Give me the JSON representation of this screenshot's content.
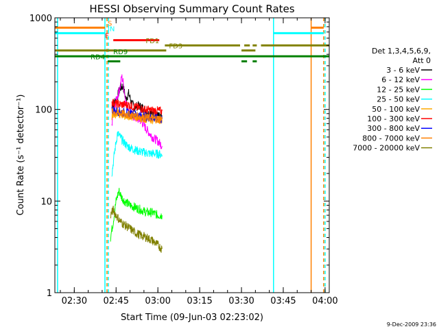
{
  "chart_data": {
    "type": "line",
    "title": "HESSI Observing Summary Count Rates",
    "xlabel": "Start Time (09-Jun-03 02:23:02)",
    "ylabel": "Count Rate (s⁻¹ detector⁻¹)",
    "y_scale": "log",
    "ylim": [
      1,
      1000
    ],
    "xlim": [
      "02:23:02",
      "04:01:30"
    ],
    "x_ticks": [
      "02:30",
      "02:45",
      "03:00",
      "03:15",
      "03:30",
      "03:45",
      "04:00"
    ],
    "y_ticks": [
      "1",
      "10",
      "100",
      "1000"
    ],
    "legend": {
      "header": [
        "Det 1,3,4,5,6,9,",
        "Att 0"
      ],
      "placement": "right"
    },
    "series": [
      {
        "name": "3 - 6 keV",
        "color": "#000000",
        "points": [
          [
            "02:43:30",
            110
          ],
          [
            "02:44:30",
            120
          ],
          [
            "02:45:30",
            140
          ],
          [
            "02:46:30",
            170
          ],
          [
            "02:47:30",
            180
          ],
          [
            "02:48:30",
            130
          ],
          [
            "02:49:30",
            150
          ],
          [
            "02:50:30",
            120
          ],
          [
            "02:51:30",
            105
          ],
          [
            "02:53:00",
            110
          ],
          [
            "02:54:30",
            105
          ],
          [
            "02:56:00",
            95
          ],
          [
            "02:58:00",
            90
          ],
          [
            "03:00:00",
            85
          ],
          [
            "03:01:30",
            80
          ]
        ]
      },
      {
        "name": "6 - 12 keV",
        "color": "#ff00ff",
        "points": [
          [
            "02:43:30",
            70
          ],
          [
            "02:44:30",
            110
          ],
          [
            "02:45:30",
            140
          ],
          [
            "02:46:30",
            180
          ],
          [
            "02:47:00",
            230
          ],
          [
            "02:47:30",
            200
          ],
          [
            "02:48:30",
            120
          ],
          [
            "02:50:00",
            90
          ],
          [
            "02:52:00",
            80
          ],
          [
            "02:54:00",
            75
          ],
          [
            "02:56:00",
            60
          ],
          [
            "02:58:00",
            50
          ],
          [
            "03:00:00",
            45
          ],
          [
            "03:01:30",
            40
          ]
        ]
      },
      {
        "name": "12 - 25 keV",
        "color": "#00ff00",
        "points": [
          [
            "02:43:00",
            4
          ],
          [
            "02:44:00",
            6
          ],
          [
            "02:45:00",
            10
          ],
          [
            "02:46:00",
            13
          ],
          [
            "02:47:00",
            11
          ],
          [
            "02:48:00",
            10
          ],
          [
            "02:50:00",
            9
          ],
          [
            "02:52:00",
            8.5
          ],
          [
            "02:54:00",
            8
          ],
          [
            "02:56:00",
            7.5
          ],
          [
            "02:58:00",
            7.5
          ],
          [
            "03:00:00",
            7
          ],
          [
            "03:01:30",
            7
          ]
        ]
      },
      {
        "name": "25 - 50 keV",
        "color": "#00ffff",
        "points": [
          [
            "02:43:30",
            20
          ],
          [
            "02:44:30",
            35
          ],
          [
            "02:45:30",
            55
          ],
          [
            "02:46:30",
            50
          ],
          [
            "02:47:30",
            45
          ],
          [
            "02:49:00",
            40
          ],
          [
            "02:51:00",
            37
          ],
          [
            "02:53:00",
            35
          ],
          [
            "02:55:00",
            34
          ],
          [
            "02:57:00",
            33
          ],
          [
            "02:59:00",
            33
          ],
          [
            "03:01:30",
            32
          ]
        ]
      },
      {
        "name": "50 - 100 keV",
        "color": "#ffaa00",
        "points": [
          [
            "02:43:30",
            85
          ],
          [
            "02:45:00",
            90
          ],
          [
            "02:47:00",
            88
          ],
          [
            "02:49:00",
            85
          ],
          [
            "02:51:00",
            84
          ],
          [
            "02:53:00",
            82
          ],
          [
            "02:55:00",
            80
          ],
          [
            "02:57:00",
            79
          ],
          [
            "02:59:00",
            78
          ],
          [
            "03:01:30",
            77
          ]
        ]
      },
      {
        "name": "100 - 300 keV",
        "color": "#ff0000",
        "points": [
          [
            "02:43:30",
            120
          ],
          [
            "02:45:00",
            115
          ],
          [
            "02:47:00",
            113
          ],
          [
            "02:49:00",
            112
          ],
          [
            "02:51:00",
            108
          ],
          [
            "02:53:00",
            104
          ],
          [
            "02:55:00",
            100
          ],
          [
            "02:57:00",
            98
          ],
          [
            "02:59:00",
            97
          ],
          [
            "03:01:30",
            96
          ]
        ]
      },
      {
        "name": "300 - 800 keV",
        "color": "#0000ff",
        "points": [
          [
            "02:43:30",
            100
          ],
          [
            "02:45:00",
            96
          ],
          [
            "02:47:00",
            94
          ],
          [
            "02:49:00",
            92
          ],
          [
            "02:51:00",
            90
          ],
          [
            "02:53:00",
            86
          ],
          [
            "02:55:00",
            84
          ],
          [
            "02:57:00",
            82
          ],
          [
            "02:59:00",
            80
          ],
          [
            "03:01:30",
            78
          ]
        ]
      },
      {
        "name": "800 - 7000 keV",
        "color": "#ff8000",
        "points": [
          [
            "02:43:30",
            95
          ],
          [
            "02:45:00",
            92
          ],
          [
            "02:47:00",
            90
          ],
          [
            "02:49:00",
            88
          ],
          [
            "02:51:00",
            86
          ],
          [
            "02:53:00",
            84
          ],
          [
            "02:55:00",
            82
          ],
          [
            "02:57:00",
            80
          ],
          [
            "02:59:00",
            79
          ],
          [
            "03:01:30",
            78
          ]
        ]
      },
      {
        "name": "7000 - 20000 keV",
        "color": "#808000",
        "points": [
          [
            "02:43:00",
            7
          ],
          [
            "02:44:00",
            8
          ],
          [
            "02:45:00",
            7
          ],
          [
            "02:46:30",
            6
          ],
          [
            "02:48:00",
            5.5
          ],
          [
            "02:50:00",
            5
          ],
          [
            "02:52:00",
            4.5
          ],
          [
            "02:54:00",
            4.2
          ],
          [
            "02:56:00",
            4
          ],
          [
            "02:58:00",
            3.7
          ],
          [
            "03:00:00",
            3.3
          ],
          [
            "03:01:30",
            3
          ]
        ]
      }
    ],
    "flag_bars": [
      {
        "label": "S",
        "color": "#ff8000",
        "y": 780,
        "segments": [
          [
            "02:23:02",
            "02:41:00"
          ],
          [
            "03:55:00",
            "03:59:30"
          ]
        ]
      },
      {
        "label": "IN",
        "color": "#00ffff",
        "y": 680,
        "segments": [
          [
            "02:23:02",
            "02:41:00"
          ],
          [
            "03:41:30",
            "03:59:30"
          ]
        ]
      },
      {
        "label": "F",
        "color": "#ff0000",
        "y": 570,
        "segments": [
          [
            "02:44:00",
            "03:00:30"
          ]
        ]
      },
      {
        "label": "FD1",
        "color": "#808000",
        "y": 500,
        "segments": [
          [
            "03:02:30",
            "03:29:30"
          ],
          [
            "03:31:00",
            "03:33:00"
          ],
          [
            "03:34:00",
            "03:35:30"
          ],
          [
            "03:37:00",
            "04:01:30"
          ]
        ]
      },
      {
        "label": "FD3",
        "color": "#808000",
        "y": 440,
        "segments": [
          [
            "02:23:02",
            "03:03:00"
          ],
          [
            "03:30:00",
            "03:35:00"
          ]
        ]
      },
      {
        "label": "RD9",
        "color": "#008000",
        "y": 380,
        "segments": [
          [
            "02:23:02",
            "04:01:30"
          ]
        ]
      },
      {
        "label": "RD4",
        "color": "#008000",
        "y": 335,
        "segments": [
          [
            "02:42:00",
            "02:46:30"
          ],
          [
            "03:30:00",
            "03:32:00"
          ],
          [
            "03:34:00",
            "03:35:30"
          ]
        ]
      }
    ],
    "vertical_lines": [
      {
        "x": "02:24:00",
        "color": "#00ffff",
        "style": "solid"
      },
      {
        "x": "02:41:00",
        "color": "#00ffff",
        "style": "solid"
      },
      {
        "x": "02:41:45",
        "color": "#ff8000",
        "style": "dashed"
      },
      {
        "x": "02:42:15",
        "color": "#00ffff",
        "style": "dashed"
      },
      {
        "x": "03:41:30",
        "color": "#00ffff",
        "style": "solid"
      },
      {
        "x": "03:55:00",
        "color": "#ff8000",
        "style": "solid"
      },
      {
        "x": "03:59:30",
        "color": "#ff8000",
        "style": "dashed"
      },
      {
        "x": "04:00:00",
        "color": "#00ffff",
        "style": "dashed"
      }
    ]
  },
  "footer_timestamp": "9-Dec-2009 23:36"
}
